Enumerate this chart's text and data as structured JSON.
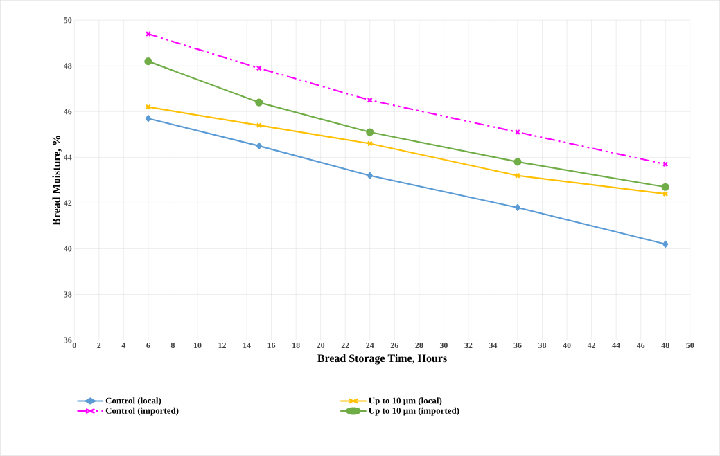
{
  "chart_data": {
    "type": "line",
    "xlabel": "Bread Storage Time, Hours",
    "ylabel": "Bread Moisture, %",
    "x": [
      6,
      15,
      24,
      36,
      48
    ],
    "series": [
      {
        "name": "Control (local)",
        "color": "#5b9bd5",
        "marker": "diamond",
        "line_style": "solid",
        "values": [
          45.7,
          44.5,
          43.2,
          41.8,
          40.2
        ]
      },
      {
        "name": "Control (imported)",
        "color": "#ff00ff",
        "marker": "cross",
        "line_style": "dashed",
        "values": [
          49.4,
          47.9,
          46.5,
          45.1,
          43.7
        ]
      },
      {
        "name": "Up to 10 µm (local)",
        "color": "#ffc000",
        "marker": "cross",
        "line_style": "solid",
        "values": [
          46.2,
          45.4,
          44.6,
          43.2,
          42.4
        ]
      },
      {
        "name": "Up to 10 µm (imported)",
        "color": "#70ad47",
        "marker": "circle",
        "line_style": "solid",
        "values": [
          48.2,
          46.4,
          45.1,
          43.8,
          42.7
        ]
      }
    ],
    "xlim": [
      0,
      50
    ],
    "xticks": [
      0,
      2,
      4,
      6,
      8,
      10,
      12,
      14,
      16,
      18,
      20,
      22,
      24,
      26,
      28,
      30,
      32,
      34,
      36,
      38,
      40,
      42,
      44,
      46,
      48,
      50
    ],
    "ylim": [
      36,
      50
    ],
    "yticks": [
      36,
      38,
      40,
      42,
      44,
      46,
      48,
      50
    ],
    "grid": true,
    "legend": "bottom"
  }
}
